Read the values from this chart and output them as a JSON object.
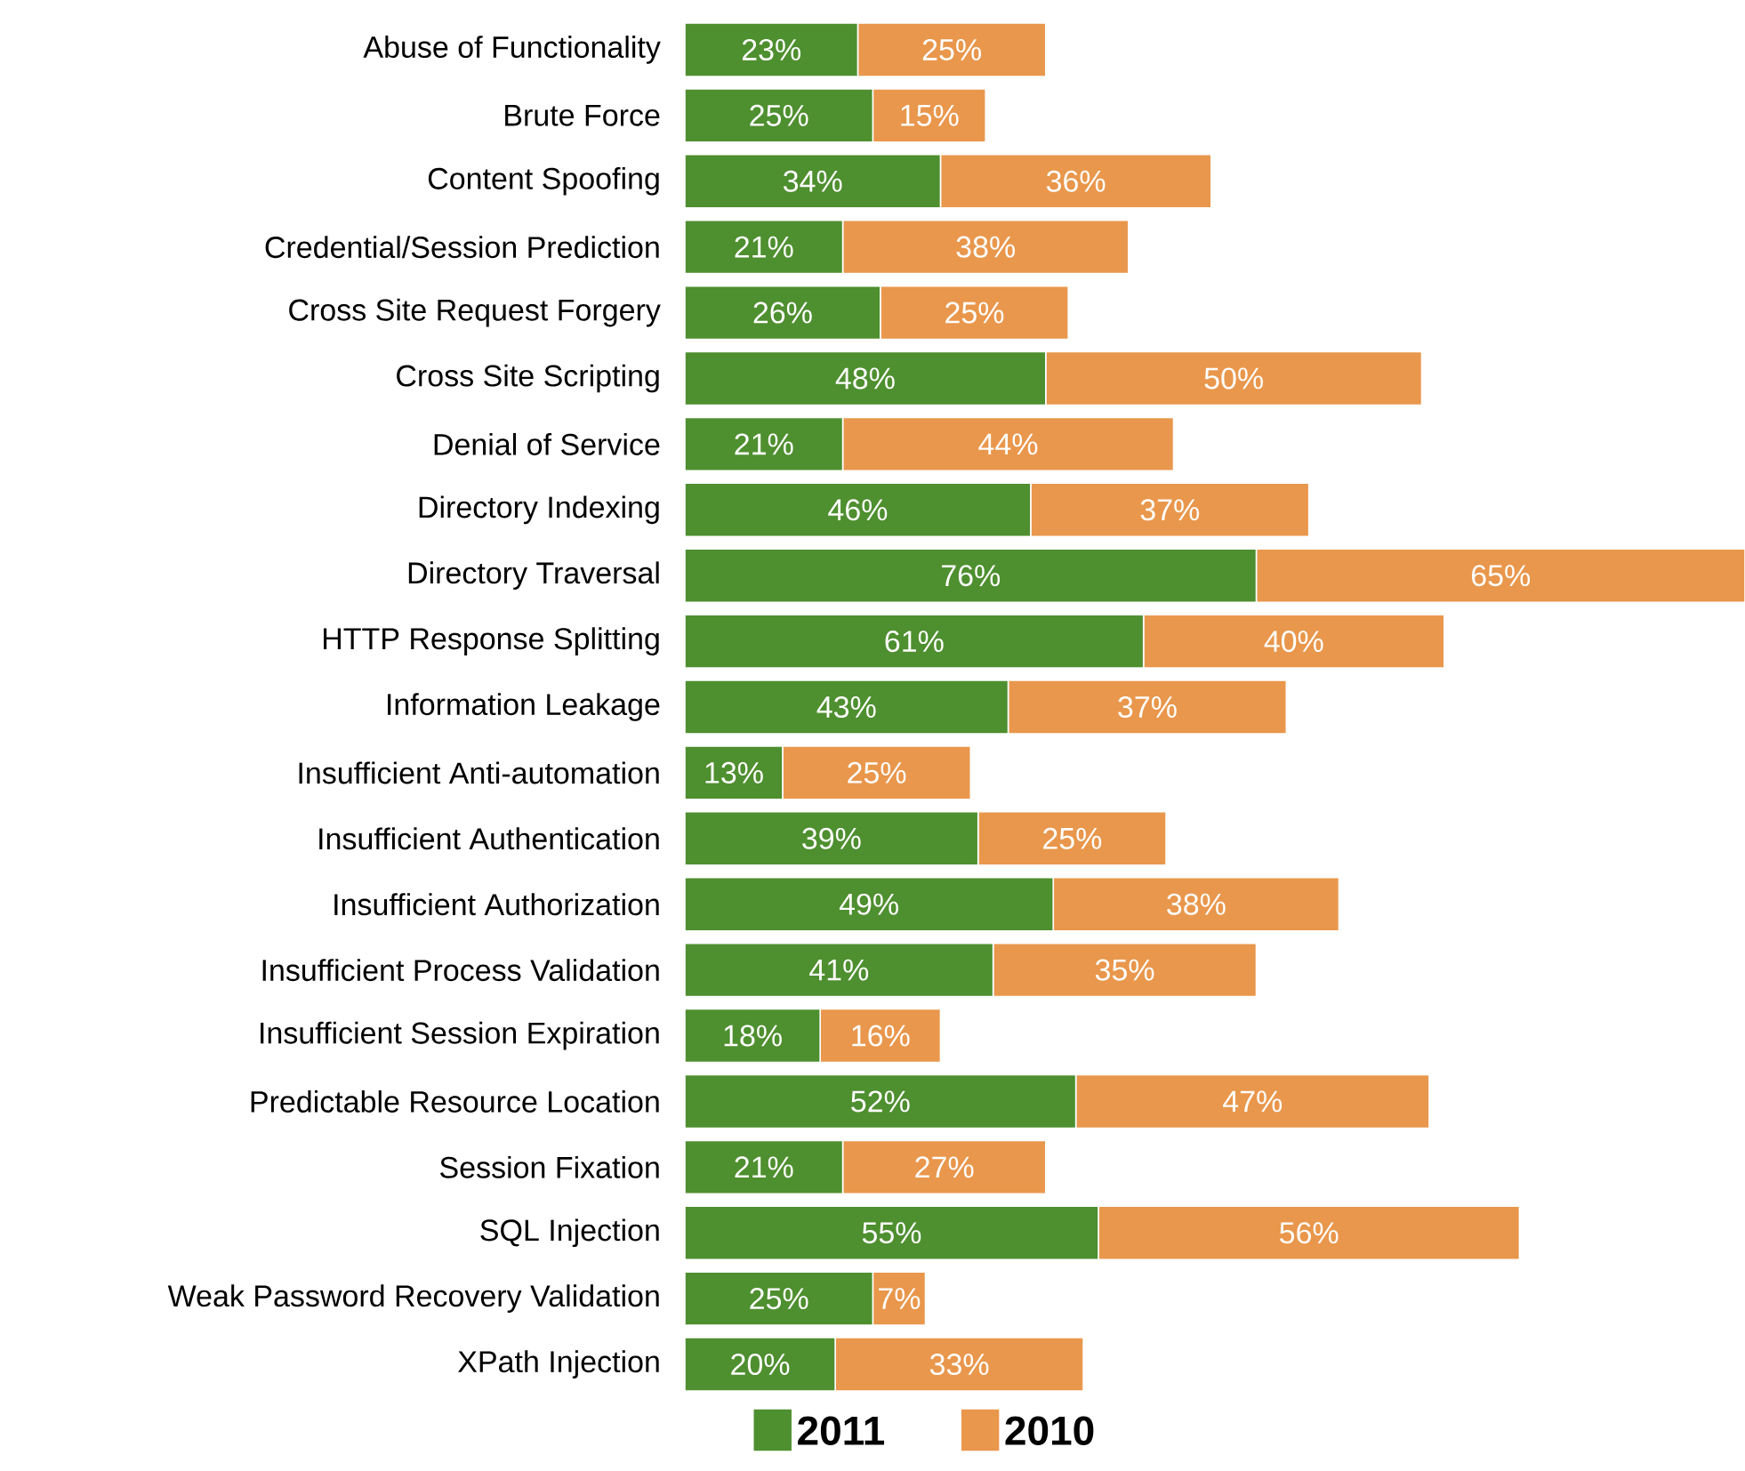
{
  "chart_data": {
    "type": "bar",
    "orientation": "horizontal",
    "stacked": true,
    "legend": "bottom",
    "categories": [
      "Abuse of Functionality",
      "Brute Force",
      "Content Spoofing",
      "Credential/Session Prediction",
      "Cross Site Request Forgery",
      "Cross Site Scripting",
      "Denial of Service",
      "Directory Indexing",
      "Directory Traversal",
      "HTTP Response Splitting",
      "Information Leakage",
      "Insufficient Anti-automation",
      "Insufficient Authentication",
      "Insufficient Authorization",
      "Insufficient Process Validation",
      "Insufficient Session Expiration",
      "Predictable Resource Location",
      "Session Fixation",
      "SQL Injection",
      "Weak Password Recovery Validation",
      "XPath Injection"
    ],
    "series": [
      {
        "name": "2011",
        "color": "#4e8f2f",
        "values": [
          23,
          25,
          34,
          21,
          26,
          48,
          21,
          46,
          76,
          61,
          43,
          13,
          39,
          49,
          41,
          18,
          52,
          21,
          55,
          25,
          20
        ],
        "value_labels": [
          "23%",
          "25%",
          "34%",
          "21%",
          "26%",
          "48%",
          "21%",
          "46%",
          "76%",
          "61%",
          "43%",
          "13%",
          "39%",
          "49%",
          "41%",
          "18%",
          "52%",
          "21%",
          "55%",
          "25%",
          "20%"
        ]
      },
      {
        "name": "2010",
        "color": "#e9974c",
        "values": [
          25,
          15,
          36,
          38,
          25,
          50,
          44,
          37,
          65,
          40,
          37,
          25,
          25,
          38,
          35,
          16,
          47,
          27,
          56,
          7,
          33
        ],
        "value_labels": [
          "25%",
          "15%",
          "36%",
          "38%",
          "25%",
          "50%",
          "44%",
          "37%",
          "65%",
          "40%",
          "37%",
          "25%",
          "25%",
          "38%",
          "35%",
          "16%",
          "47%",
          "27%",
          "56%",
          "7%",
          "33%"
        ]
      }
    ]
  }
}
